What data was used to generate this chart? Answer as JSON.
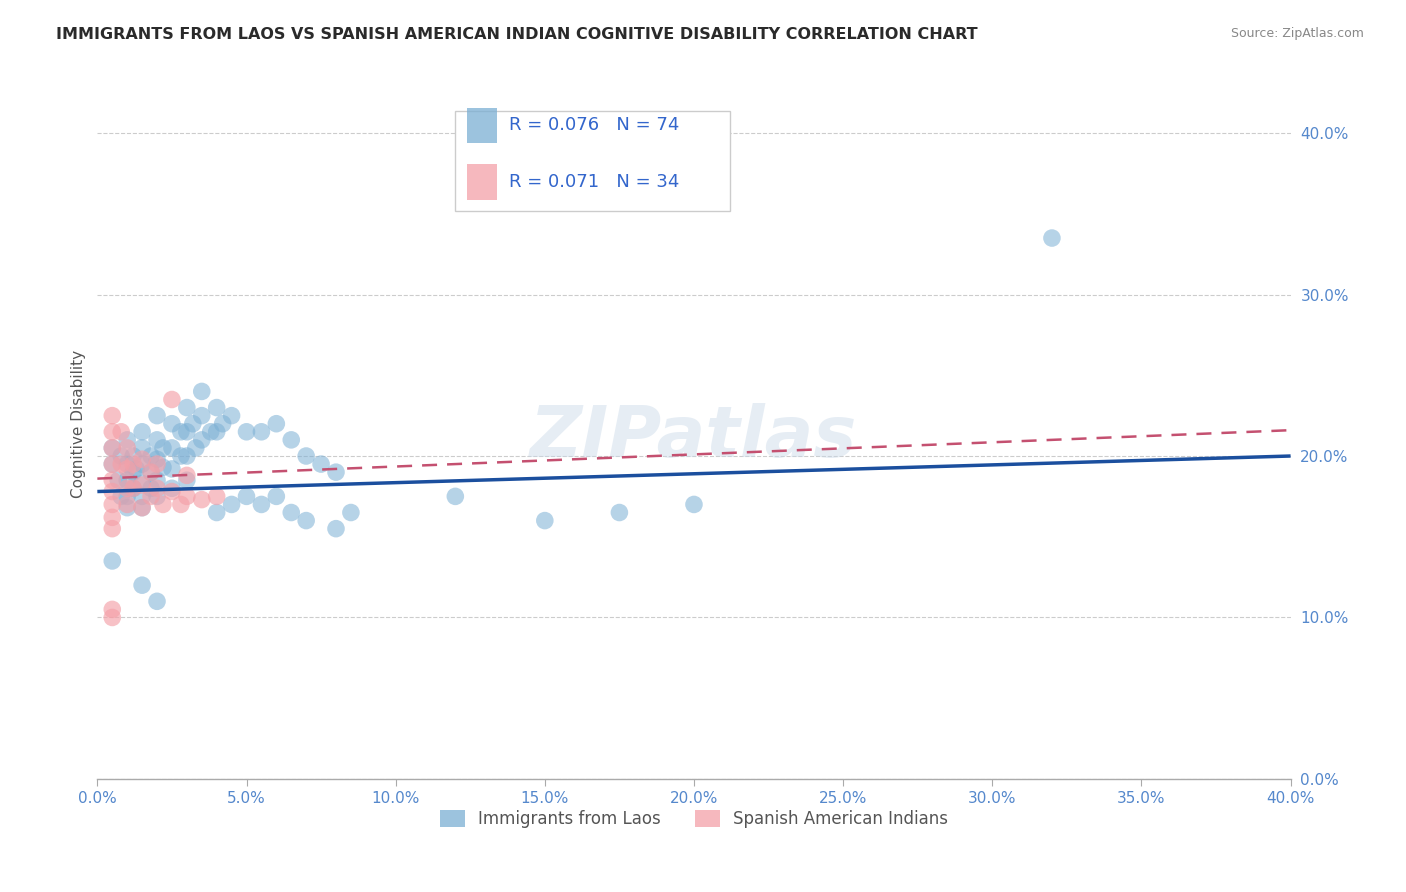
{
  "title": "IMMIGRANTS FROM LAOS VS SPANISH AMERICAN INDIAN COGNITIVE DISABILITY CORRELATION CHART",
  "source": "Source: ZipAtlas.com",
  "ylabel": "Cognitive Disability",
  "xlim": [
    0.0,
    0.4
  ],
  "ylim": [
    0.0,
    0.44
  ],
  "yticks": [
    0.0,
    0.1,
    0.2,
    0.3,
    0.4
  ],
  "xticks": [
    0.0,
    0.05,
    0.1,
    0.15,
    0.2,
    0.25,
    0.3,
    0.35,
    0.4
  ],
  "watermark": "ZIPatlas",
  "legend_r1": "R = 0.076",
  "legend_n1": "N = 74",
  "legend_r2": "R = 0.071",
  "legend_n2": "N = 34",
  "legend_label1": "Immigrants from Laos",
  "legend_label2": "Spanish American Indians",
  "blue_color": "#7BAFD4",
  "pink_color": "#F4A0A8",
  "blue_line_color": "#1B4F9E",
  "pink_line_color": "#C45070",
  "blue_scatter": [
    [
      0.005,
      0.205
    ],
    [
      0.005,
      0.195
    ],
    [
      0.007,
      0.185
    ],
    [
      0.008,
      0.175
    ],
    [
      0.008,
      0.2
    ],
    [
      0.01,
      0.21
    ],
    [
      0.01,
      0.195
    ],
    [
      0.01,
      0.185
    ],
    [
      0.01,
      0.175
    ],
    [
      0.01,
      0.168
    ],
    [
      0.012,
      0.2
    ],
    [
      0.012,
      0.19
    ],
    [
      0.012,
      0.18
    ],
    [
      0.013,
      0.192
    ],
    [
      0.015,
      0.215
    ],
    [
      0.015,
      0.205
    ],
    [
      0.015,
      0.195
    ],
    [
      0.015,
      0.183
    ],
    [
      0.015,
      0.175
    ],
    [
      0.015,
      0.168
    ],
    [
      0.018,
      0.2
    ],
    [
      0.018,
      0.19
    ],
    [
      0.018,
      0.18
    ],
    [
      0.02,
      0.225
    ],
    [
      0.02,
      0.21
    ],
    [
      0.02,
      0.198
    ],
    [
      0.02,
      0.185
    ],
    [
      0.02,
      0.175
    ],
    [
      0.022,
      0.205
    ],
    [
      0.022,
      0.193
    ],
    [
      0.025,
      0.22
    ],
    [
      0.025,
      0.205
    ],
    [
      0.025,
      0.192
    ],
    [
      0.025,
      0.18
    ],
    [
      0.028,
      0.215
    ],
    [
      0.028,
      0.2
    ],
    [
      0.03,
      0.23
    ],
    [
      0.03,
      0.215
    ],
    [
      0.03,
      0.2
    ],
    [
      0.03,
      0.185
    ],
    [
      0.032,
      0.22
    ],
    [
      0.033,
      0.205
    ],
    [
      0.035,
      0.24
    ],
    [
      0.035,
      0.225
    ],
    [
      0.035,
      0.21
    ],
    [
      0.038,
      0.215
    ],
    [
      0.04,
      0.23
    ],
    [
      0.04,
      0.215
    ],
    [
      0.04,
      0.165
    ],
    [
      0.042,
      0.22
    ],
    [
      0.045,
      0.225
    ],
    [
      0.045,
      0.17
    ],
    [
      0.05,
      0.215
    ],
    [
      0.05,
      0.175
    ],
    [
      0.055,
      0.215
    ],
    [
      0.055,
      0.17
    ],
    [
      0.06,
      0.22
    ],
    [
      0.06,
      0.175
    ],
    [
      0.065,
      0.21
    ],
    [
      0.065,
      0.165
    ],
    [
      0.07,
      0.2
    ],
    [
      0.07,
      0.16
    ],
    [
      0.075,
      0.195
    ],
    [
      0.08,
      0.19
    ],
    [
      0.08,
      0.155
    ],
    [
      0.085,
      0.165
    ],
    [
      0.12,
      0.175
    ],
    [
      0.15,
      0.16
    ],
    [
      0.175,
      0.165
    ],
    [
      0.2,
      0.17
    ],
    [
      0.005,
      0.135
    ],
    [
      0.015,
      0.12
    ],
    [
      0.02,
      0.11
    ],
    [
      0.32,
      0.335
    ]
  ],
  "pink_scatter": [
    [
      0.005,
      0.225
    ],
    [
      0.005,
      0.215
    ],
    [
      0.005,
      0.205
    ],
    [
      0.005,
      0.195
    ],
    [
      0.005,
      0.185
    ],
    [
      0.005,
      0.178
    ],
    [
      0.005,
      0.17
    ],
    [
      0.005,
      0.162
    ],
    [
      0.005,
      0.155
    ],
    [
      0.005,
      0.105
    ],
    [
      0.008,
      0.215
    ],
    [
      0.008,
      0.195
    ],
    [
      0.01,
      0.205
    ],
    [
      0.01,
      0.192
    ],
    [
      0.01,
      0.18
    ],
    [
      0.01,
      0.17
    ],
    [
      0.012,
      0.195
    ],
    [
      0.012,
      0.18
    ],
    [
      0.015,
      0.198
    ],
    [
      0.015,
      0.182
    ],
    [
      0.015,
      0.168
    ],
    [
      0.018,
      0.19
    ],
    [
      0.018,
      0.175
    ],
    [
      0.02,
      0.195
    ],
    [
      0.02,
      0.18
    ],
    [
      0.022,
      0.17
    ],
    [
      0.025,
      0.235
    ],
    [
      0.025,
      0.178
    ],
    [
      0.028,
      0.17
    ],
    [
      0.03,
      0.188
    ],
    [
      0.03,
      0.175
    ],
    [
      0.035,
      0.173
    ],
    [
      0.04,
      0.175
    ],
    [
      0.005,
      0.1
    ]
  ],
  "blue_trendline": [
    [
      0.0,
      0.178
    ],
    [
      0.4,
      0.2
    ]
  ],
  "pink_trendline": [
    [
      0.0,
      0.186
    ],
    [
      0.4,
      0.216
    ]
  ]
}
